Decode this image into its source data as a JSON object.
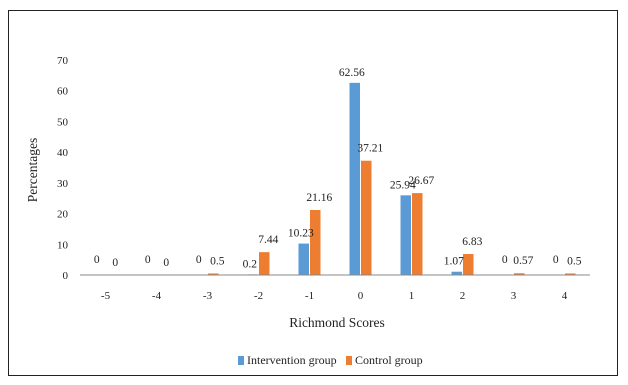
{
  "chart_data": {
    "type": "bar",
    "xlabel": "Richmond Scores",
    "ylabel": "Percentages",
    "ylim": [
      0,
      70
    ],
    "yticks": [
      "0",
      "10",
      "20",
      "30",
      "40",
      "50",
      "60",
      "70"
    ],
    "categories": [
      "-5",
      "-4",
      "-3",
      "-2",
      "-1",
      "0",
      "1",
      "2",
      "3",
      "4"
    ],
    "grid": false,
    "legend_position": "bottom",
    "series": [
      {
        "name": "Intervention group",
        "color": "#5B9BD5",
        "values": [
          0,
          0,
          0,
          0.2,
          10.23,
          62.56,
          25.94,
          1.07,
          0,
          0
        ],
        "labels": [
          "0",
          "0",
          "0",
          "0.2",
          "10.23",
          "62.56",
          "25.94",
          "1.07",
          "0",
          "0"
        ]
      },
      {
        "name": "Control group",
        "color": "#ED7D31",
        "values": [
          0,
          0,
          0.5,
          7.44,
          21.16,
          37.21,
          26.67,
          6.83,
          0.57,
          0.5
        ],
        "labels": [
          "0",
          "0",
          "0.5",
          "7.44",
          "21.16",
          "37.21",
          "26.67",
          "6.83",
          "0.57",
          "0.5"
        ]
      }
    ]
  }
}
